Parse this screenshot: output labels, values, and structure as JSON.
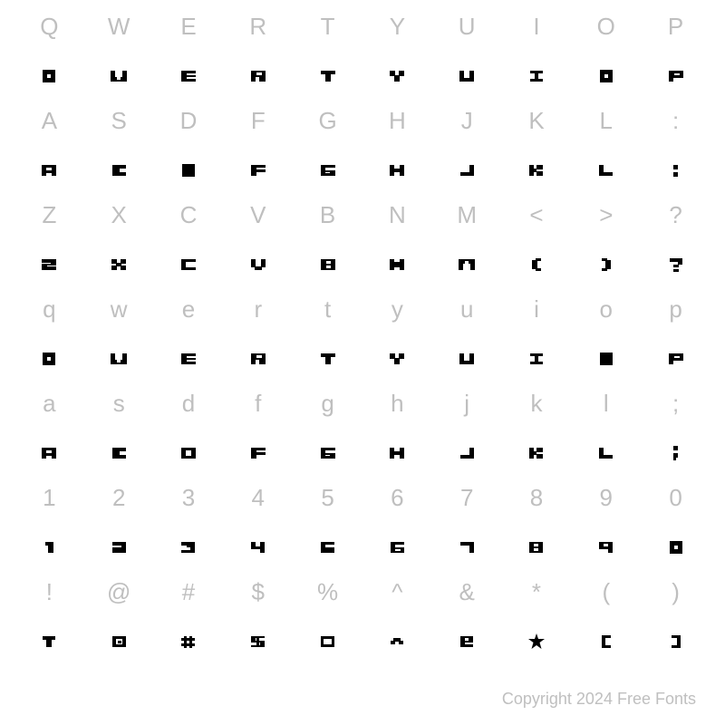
{
  "grid": {
    "columns": 10,
    "rows": 7,
    "ref_color": "#bfbfbf",
    "ref_fontsize": 26,
    "glyph_color": "#000000",
    "background": "#ffffff",
    "cells": [
      {
        "ref": "Q",
        "glyph": "box-dot"
      },
      {
        "ref": "W",
        "glyph": "W"
      },
      {
        "ref": "E",
        "glyph": "E"
      },
      {
        "ref": "R",
        "glyph": "R"
      },
      {
        "ref": "T",
        "glyph": "T"
      },
      {
        "ref": "Y",
        "glyph": "Y"
      },
      {
        "ref": "U",
        "glyph": "U"
      },
      {
        "ref": "I",
        "glyph": "I"
      },
      {
        "ref": "O",
        "glyph": "box-dot"
      },
      {
        "ref": "P",
        "glyph": "P"
      },
      {
        "ref": "A",
        "glyph": "A"
      },
      {
        "ref": "S",
        "glyph": "S"
      },
      {
        "ref": "D",
        "glyph": "box"
      },
      {
        "ref": "F",
        "glyph": "F"
      },
      {
        "ref": "G",
        "glyph": "G"
      },
      {
        "ref": "H",
        "glyph": "H"
      },
      {
        "ref": "J",
        "glyph": "J"
      },
      {
        "ref": "K",
        "glyph": "K"
      },
      {
        "ref": "L",
        "glyph": "L"
      },
      {
        "ref": ":",
        "glyph": "colon"
      },
      {
        "ref": "Z",
        "glyph": "Z"
      },
      {
        "ref": "X",
        "glyph": "X"
      },
      {
        "ref": "C",
        "glyph": "C"
      },
      {
        "ref": "V",
        "glyph": "V"
      },
      {
        "ref": "B",
        "glyph": "B"
      },
      {
        "ref": "N",
        "glyph": "N"
      },
      {
        "ref": "M",
        "glyph": "M"
      },
      {
        "ref": "<",
        "glyph": "lparen"
      },
      {
        "ref": ">",
        "glyph": "rparen"
      },
      {
        "ref": "?",
        "glyph": "question"
      },
      {
        "ref": "q",
        "glyph": "box-dot"
      },
      {
        "ref": "w",
        "glyph": "W"
      },
      {
        "ref": "e",
        "glyph": "E"
      },
      {
        "ref": "r",
        "glyph": "R"
      },
      {
        "ref": "t",
        "glyph": "T"
      },
      {
        "ref": "y",
        "glyph": "Y"
      },
      {
        "ref": "u",
        "glyph": "U"
      },
      {
        "ref": "i",
        "glyph": "I"
      },
      {
        "ref": "o",
        "glyph": "box"
      },
      {
        "ref": "p",
        "glyph": "P"
      },
      {
        "ref": "a",
        "glyph": "A"
      },
      {
        "ref": "s",
        "glyph": "S"
      },
      {
        "ref": "d",
        "glyph": "D"
      },
      {
        "ref": "f",
        "glyph": "F"
      },
      {
        "ref": "g",
        "glyph": "G"
      },
      {
        "ref": "h",
        "glyph": "H"
      },
      {
        "ref": "j",
        "glyph": "J"
      },
      {
        "ref": "k",
        "glyph": "K"
      },
      {
        "ref": "l",
        "glyph": "L"
      },
      {
        "ref": ";",
        "glyph": "semicolon"
      },
      {
        "ref": "1",
        "glyph": "one"
      },
      {
        "ref": "2",
        "glyph": "two"
      },
      {
        "ref": "3",
        "glyph": "three"
      },
      {
        "ref": "4",
        "glyph": "four"
      },
      {
        "ref": "5",
        "glyph": "five"
      },
      {
        "ref": "6",
        "glyph": "six"
      },
      {
        "ref": "7",
        "glyph": "seven"
      },
      {
        "ref": "8",
        "glyph": "eight"
      },
      {
        "ref": "9",
        "glyph": "nine"
      },
      {
        "ref": "0",
        "glyph": "box-dot"
      },
      {
        "ref": "!",
        "glyph": "exclaim"
      },
      {
        "ref": "@",
        "glyph": "at"
      },
      {
        "ref": "#",
        "glyph": "hash"
      },
      {
        "ref": "$",
        "glyph": "dollar"
      },
      {
        "ref": "%",
        "glyph": "percent"
      },
      {
        "ref": "^",
        "glyph": "caret"
      },
      {
        "ref": "&",
        "glyph": "amp"
      },
      {
        "ref": "*",
        "glyph": "star"
      },
      {
        "ref": "(",
        "glyph": "lbracket"
      },
      {
        "ref": ")",
        "glyph": "rbracket"
      }
    ]
  },
  "copyright": "Copyright 2024 Free Fonts"
}
